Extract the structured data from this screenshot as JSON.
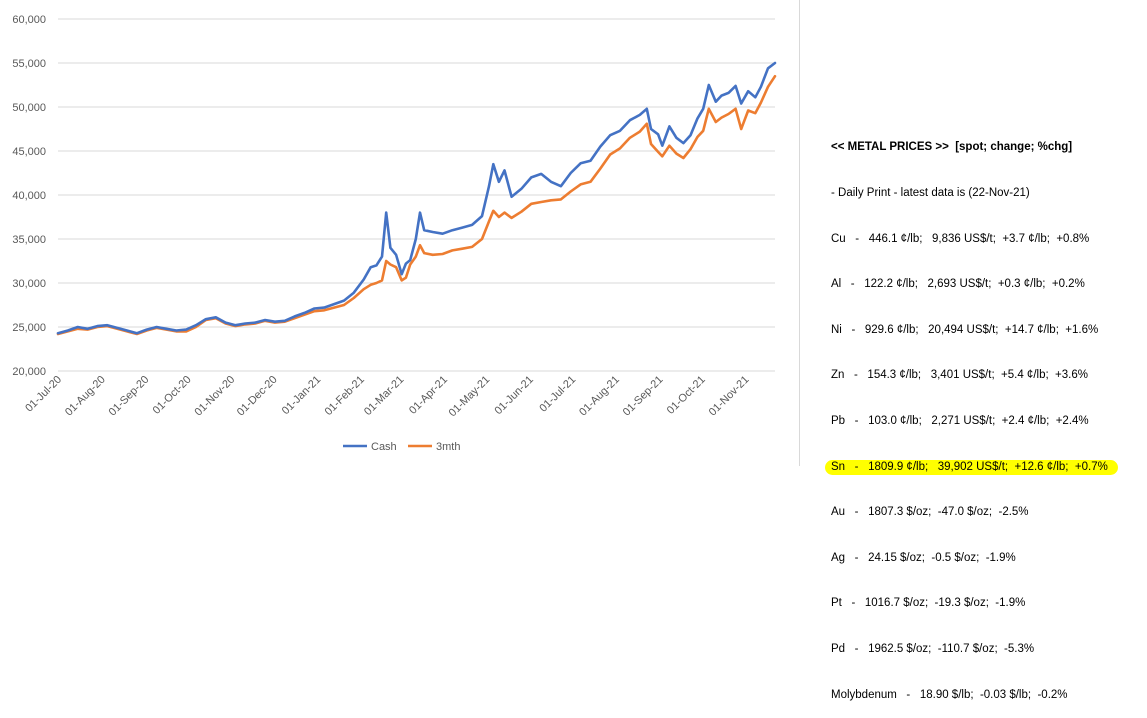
{
  "chart_data": {
    "type": "line",
    "ylim": [
      20000,
      60000
    ],
    "ytick_labels": [
      "20,000",
      "25,000",
      "30,000",
      "35,000",
      "40,000",
      "45,000",
      "50,000",
      "55,000",
      "60,000"
    ],
    "yticks": [
      20000,
      25000,
      30000,
      35000,
      40000,
      45000,
      50000,
      55000,
      60000
    ],
    "xlim": [
      "2020-07-01",
      "2021-11-22"
    ],
    "xtick_labels": [
      "01-Jul-20",
      "01-Aug-20",
      "01-Sep-20",
      "01-Oct-20",
      "01-Nov-20",
      "01-Dec-20",
      "01-Jan-21",
      "01-Feb-21",
      "01-Mar-21",
      "01-Apr-21",
      "01-May-21",
      "01-Jun-21",
      "01-Jul-21",
      "01-Aug-21",
      "01-Sep-21",
      "01-Oct-21",
      "01-Nov-21"
    ],
    "xticks": [
      "2020-07-01",
      "2020-08-01",
      "2020-09-01",
      "2020-10-01",
      "2020-11-01",
      "2020-12-01",
      "2021-01-01",
      "2021-02-01",
      "2021-03-01",
      "2021-04-01",
      "2021-05-01",
      "2021-06-01",
      "2021-07-01",
      "2021-08-01",
      "2021-09-01",
      "2021-10-01",
      "2021-11-01"
    ],
    "grid": true,
    "legend": "bottom",
    "series": [
      {
        "name": "Cash",
        "color": "#4472c4",
        "points": [
          [
            "2020-07-01",
            24300
          ],
          [
            "2020-07-08",
            24600
          ],
          [
            "2020-07-15",
            25000
          ],
          [
            "2020-07-22",
            24800
          ],
          [
            "2020-07-29",
            25100
          ],
          [
            "2020-08-05",
            25200
          ],
          [
            "2020-08-12",
            24900
          ],
          [
            "2020-08-19",
            24600
          ],
          [
            "2020-08-26",
            24300
          ],
          [
            "2020-09-02",
            24700
          ],
          [
            "2020-09-09",
            25000
          ],
          [
            "2020-09-16",
            24800
          ],
          [
            "2020-09-23",
            24600
          ],
          [
            "2020-09-30",
            24700
          ],
          [
            "2020-10-07",
            25200
          ],
          [
            "2020-10-14",
            25900
          ],
          [
            "2020-10-21",
            26100
          ],
          [
            "2020-10-28",
            25500
          ],
          [
            "2020-11-04",
            25200
          ],
          [
            "2020-11-11",
            25400
          ],
          [
            "2020-11-18",
            25500
          ],
          [
            "2020-11-25",
            25800
          ],
          [
            "2020-12-02",
            25600
          ],
          [
            "2020-12-09",
            25700
          ],
          [
            "2020-12-16",
            26200
          ],
          [
            "2020-12-23",
            26600
          ],
          [
            "2020-12-30",
            27100
          ],
          [
            "2021-01-06",
            27200
          ],
          [
            "2021-01-13",
            27600
          ],
          [
            "2021-01-20",
            28000
          ],
          [
            "2021-01-27",
            28900
          ],
          [
            "2021-02-03",
            30400
          ],
          [
            "2021-02-08",
            31800
          ],
          [
            "2021-02-12",
            32000
          ],
          [
            "2021-02-16",
            33000
          ],
          [
            "2021-02-19",
            38000
          ],
          [
            "2021-02-22",
            34000
          ],
          [
            "2021-02-26",
            33200
          ],
          [
            "2021-03-02",
            31000
          ],
          [
            "2021-03-05",
            32200
          ],
          [
            "2021-03-08",
            32600
          ],
          [
            "2021-03-12",
            35000
          ],
          [
            "2021-03-15",
            38000
          ],
          [
            "2021-03-18",
            36000
          ],
          [
            "2021-03-24",
            35800
          ],
          [
            "2021-03-31",
            35600
          ],
          [
            "2021-04-07",
            36000
          ],
          [
            "2021-04-14",
            36300
          ],
          [
            "2021-04-21",
            36600
          ],
          [
            "2021-04-28",
            37600
          ],
          [
            "2021-05-03",
            41000
          ],
          [
            "2021-05-06",
            43500
          ],
          [
            "2021-05-10",
            41500
          ],
          [
            "2021-05-14",
            42800
          ],
          [
            "2021-05-19",
            39800
          ],
          [
            "2021-05-26",
            40700
          ],
          [
            "2021-06-02",
            42000
          ],
          [
            "2021-06-09",
            42400
          ],
          [
            "2021-06-16",
            41500
          ],
          [
            "2021-06-23",
            41000
          ],
          [
            "2021-06-30",
            42500
          ],
          [
            "2021-07-07",
            43600
          ],
          [
            "2021-07-14",
            43900
          ],
          [
            "2021-07-21",
            45500
          ],
          [
            "2021-07-28",
            46800
          ],
          [
            "2021-08-04",
            47300
          ],
          [
            "2021-08-11",
            48500
          ],
          [
            "2021-08-18",
            49100
          ],
          [
            "2021-08-23",
            49800
          ],
          [
            "2021-08-26",
            47500
          ],
          [
            "2021-08-31",
            46900
          ],
          [
            "2021-09-03",
            45600
          ],
          [
            "2021-09-08",
            47800
          ],
          [
            "2021-09-13",
            46500
          ],
          [
            "2021-09-18",
            45900
          ],
          [
            "2021-09-23",
            46800
          ],
          [
            "2021-09-28",
            48700
          ],
          [
            "2021-10-02",
            49800
          ],
          [
            "2021-10-06",
            52500
          ],
          [
            "2021-10-11",
            50600
          ],
          [
            "2021-10-15",
            51300
          ],
          [
            "2021-10-20",
            51600
          ],
          [
            "2021-10-25",
            52400
          ],
          [
            "2021-10-29",
            50400
          ],
          [
            "2021-11-03",
            51800
          ],
          [
            "2021-11-08",
            51100
          ],
          [
            "2021-11-12",
            52300
          ],
          [
            "2021-11-17",
            54400
          ],
          [
            "2021-11-22",
            55000
          ]
        ]
      },
      {
        "name": "3mth",
        "color": "#ed7d31",
        "points": [
          [
            "2020-07-01",
            24200
          ],
          [
            "2020-07-08",
            24500
          ],
          [
            "2020-07-15",
            24800
          ],
          [
            "2020-07-22",
            24700
          ],
          [
            "2020-07-29",
            25000
          ],
          [
            "2020-08-05",
            25100
          ],
          [
            "2020-08-12",
            24800
          ],
          [
            "2020-08-19",
            24500
          ],
          [
            "2020-08-26",
            24200
          ],
          [
            "2020-09-02",
            24600
          ],
          [
            "2020-09-09",
            24900
          ],
          [
            "2020-09-16",
            24700
          ],
          [
            "2020-09-23",
            24500
          ],
          [
            "2020-09-30",
            24500
          ],
          [
            "2020-10-07",
            25000
          ],
          [
            "2020-10-14",
            25800
          ],
          [
            "2020-10-21",
            26000
          ],
          [
            "2020-10-28",
            25400
          ],
          [
            "2020-11-04",
            25100
          ],
          [
            "2020-11-11",
            25300
          ],
          [
            "2020-11-18",
            25400
          ],
          [
            "2020-11-25",
            25700
          ],
          [
            "2020-12-02",
            25500
          ],
          [
            "2020-12-09",
            25600
          ],
          [
            "2020-12-16",
            26000
          ],
          [
            "2020-12-23",
            26400
          ],
          [
            "2020-12-30",
            26800
          ],
          [
            "2021-01-06",
            26900
          ],
          [
            "2021-01-13",
            27200
          ],
          [
            "2021-01-20",
            27500
          ],
          [
            "2021-01-27",
            28300
          ],
          [
            "2021-02-03",
            29300
          ],
          [
            "2021-02-08",
            29800
          ],
          [
            "2021-02-12",
            30000
          ],
          [
            "2021-02-16",
            30300
          ],
          [
            "2021-02-19",
            32500
          ],
          [
            "2021-02-22",
            32100
          ],
          [
            "2021-02-26",
            31800
          ],
          [
            "2021-03-02",
            30300
          ],
          [
            "2021-03-05",
            30600
          ],
          [
            "2021-03-08",
            32100
          ],
          [
            "2021-03-12",
            33000
          ],
          [
            "2021-03-15",
            34300
          ],
          [
            "2021-03-18",
            33400
          ],
          [
            "2021-03-24",
            33200
          ],
          [
            "2021-03-31",
            33300
          ],
          [
            "2021-04-07",
            33700
          ],
          [
            "2021-04-14",
            33900
          ],
          [
            "2021-04-21",
            34100
          ],
          [
            "2021-04-28",
            35000
          ],
          [
            "2021-05-03",
            37000
          ],
          [
            "2021-05-06",
            38200
          ],
          [
            "2021-05-10",
            37500
          ],
          [
            "2021-05-14",
            38000
          ],
          [
            "2021-05-19",
            37400
          ],
          [
            "2021-05-26",
            38100
          ],
          [
            "2021-06-02",
            39000
          ],
          [
            "2021-06-09",
            39200
          ],
          [
            "2021-06-16",
            39400
          ],
          [
            "2021-06-23",
            39500
          ],
          [
            "2021-06-30",
            40400
          ],
          [
            "2021-07-07",
            41200
          ],
          [
            "2021-07-14",
            41500
          ],
          [
            "2021-07-21",
            43000
          ],
          [
            "2021-07-28",
            44600
          ],
          [
            "2021-08-04",
            45300
          ],
          [
            "2021-08-11",
            46500
          ],
          [
            "2021-08-18",
            47200
          ],
          [
            "2021-08-23",
            48100
          ],
          [
            "2021-08-26",
            45800
          ],
          [
            "2021-08-31",
            44900
          ],
          [
            "2021-09-03",
            44400
          ],
          [
            "2021-09-08",
            45600
          ],
          [
            "2021-09-13",
            44700
          ],
          [
            "2021-09-18",
            44200
          ],
          [
            "2021-09-23",
            45200
          ],
          [
            "2021-09-28",
            46600
          ],
          [
            "2021-10-02",
            47300
          ],
          [
            "2021-10-06",
            49800
          ],
          [
            "2021-10-11",
            48300
          ],
          [
            "2021-10-15",
            48800
          ],
          [
            "2021-10-20",
            49200
          ],
          [
            "2021-10-25",
            49800
          ],
          [
            "2021-10-29",
            47500
          ],
          [
            "2021-11-03",
            49600
          ],
          [
            "2021-11-08",
            49300
          ],
          [
            "2021-11-12",
            50500
          ],
          [
            "2021-11-17",
            52300
          ],
          [
            "2021-11-22",
            53500
          ]
        ]
      }
    ]
  },
  "prices": {
    "title": "<< METAL PRICES >>  [spot; change; %chg]",
    "subtitle": "- Daily Print - latest data is (22-Nov-21)",
    "rows": [
      {
        "text": "Cu   -   446.1 ¢/lb;   9,836 US$/t;  +3.7 ¢/lb;  +0.8%"
      },
      {
        "text": "Al   -   122.2 ¢/lb;   2,693 US$/t;  +0.3 ¢/lb;  +0.2%"
      },
      {
        "text": "Ni   -   929.6 ¢/lb;   20,494 US$/t;  +14.7 ¢/lb;  +1.6%"
      },
      {
        "text": "Zn   -   154.3 ¢/lb;   3,401 US$/t;  +5.4 ¢/lb;  +3.6%"
      },
      {
        "text": "Pb   -   103.0 ¢/lb;   2,271 US$/t;  +2.4 ¢/lb;  +2.4%"
      },
      {
        "text": "Sn   -   1809.9 ¢/lb;   39,902 US$/t;  +12.6 ¢/lb;  +0.7%",
        "highlight": true
      },
      {
        "text": "Au   -   1807.3 $/oz;  -47.0 $/oz;  -2.5%"
      },
      {
        "text": "Ag   -   24.15 $/oz;  -0.5 $/oz;  -1.9%"
      },
      {
        "text": "Pt   -   1016.7 $/oz;  -19.3 $/oz;  -1.9%"
      },
      {
        "text": "Pd   -   1962.5 $/oz;  -110.7 $/oz;  -5.3%"
      },
      {
        "text": "Molybdenum   -   18.90 $/lb;  -0.03 $/lb;  -0.2%"
      }
    ]
  }
}
